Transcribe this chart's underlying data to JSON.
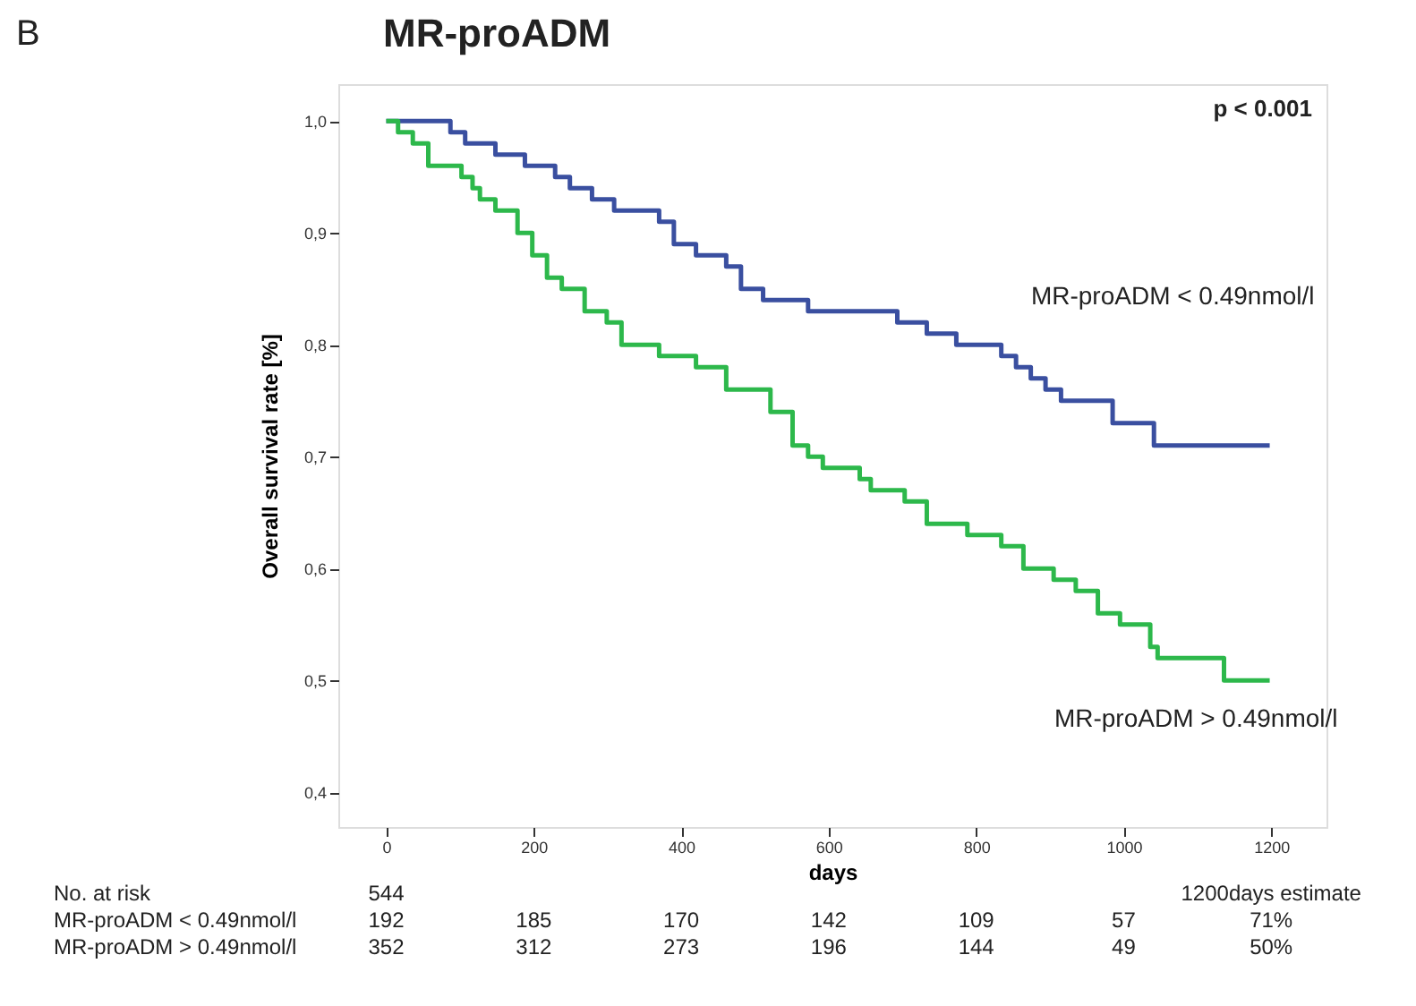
{
  "chart_data": {
    "type": "step",
    "title": "MR-proADM",
    "xlabel": "days",
    "ylabel": "Overall survival rate [%]",
    "xlim": [
      -65,
      1275
    ],
    "xticks": [
      0,
      200,
      400,
      600,
      800,
      1000,
      1200
    ],
    "ylim": [
      0.369,
      1.033
    ],
    "yticks": [
      {
        "value": 0.4,
        "label": "0,4"
      },
      {
        "value": 0.5,
        "label": "0,5"
      },
      {
        "value": 0.6,
        "label": "0,6"
      },
      {
        "value": 0.7,
        "label": "0,7"
      },
      {
        "value": 0.8,
        "label": "0,8"
      },
      {
        "value": 0.9,
        "label": "0,9"
      },
      {
        "value": 1.0,
        "label": "1,0"
      }
    ],
    "grid": false,
    "legend": false,
    "marker": "none",
    "line_style": "solid",
    "series": [
      {
        "name": "MR-proADM < 0.49nmol/l",
        "color": "#3a4fa0",
        "x": [
          0,
          67,
          87,
          107,
          148,
          188,
          229,
          249,
          279,
          309,
          339,
          370,
          390,
          420,
          461,
          481,
          511,
          541,
          572,
          668,
          693,
          733,
          773,
          834,
          854,
          874,
          894,
          915,
          975,
          985,
          1041,
          1198
        ],
        "values": [
          1.0,
          1.0,
          0.99,
          0.98,
          0.97,
          0.96,
          0.95,
          0.94,
          0.93,
          0.92,
          0.92,
          0.91,
          0.89,
          0.88,
          0.87,
          0.85,
          0.84,
          0.84,
          0.83,
          0.83,
          0.82,
          0.81,
          0.8,
          0.79,
          0.78,
          0.77,
          0.76,
          0.75,
          0.75,
          0.73,
          0.71,
          0.71
        ]
      },
      {
        "name": "MR-proADM > 0.49nmol/l",
        "color": "#2db84b",
        "x": [
          0,
          16,
          36,
          57,
          77,
          102,
          117,
          127,
          148,
          178,
          198,
          218,
          238,
          269,
          299,
          319,
          339,
          370,
          420,
          461,
          521,
          551,
          572,
          592,
          642,
          657,
          703,
          733,
          763,
          788,
          834,
          864,
          905,
          935,
          965,
          995,
          1036,
          1046,
          1136,
          1198
        ],
        "values": [
          1.0,
          0.99,
          0.98,
          0.96,
          0.96,
          0.95,
          0.94,
          0.93,
          0.92,
          0.9,
          0.88,
          0.86,
          0.85,
          0.83,
          0.82,
          0.8,
          0.8,
          0.79,
          0.78,
          0.76,
          0.74,
          0.71,
          0.7,
          0.69,
          0.68,
          0.67,
          0.66,
          0.64,
          0.64,
          0.63,
          0.62,
          0.6,
          0.59,
          0.58,
          0.56,
          0.55,
          0.53,
          0.52,
          0.5,
          0.5
        ]
      }
    ],
    "annotations": [
      "B",
      "p < 0.001",
      "No. at risk",
      "544",
      "1200days estimate",
      "MR-proADM < 0.49nmol/l",
      "192",
      "185",
      "170",
      "142",
      "109",
      "57",
      "71%",
      "MR-proADM > 0.49nmol/l",
      "352",
      "312",
      "273",
      "196",
      "144",
      "49",
      "50%"
    ]
  }
}
